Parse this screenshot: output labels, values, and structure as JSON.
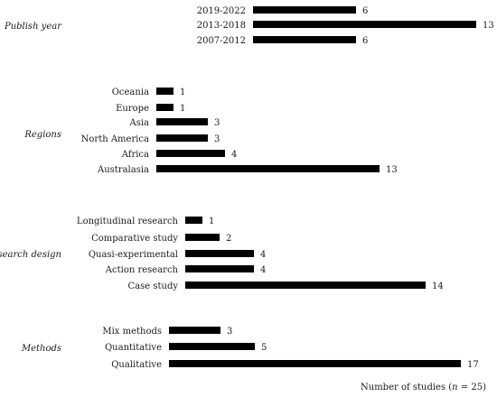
{
  "chart_data": [
    {
      "type": "bar",
      "orientation": "horizontal",
      "group_label": "Publish year",
      "categories": [
        "2019-2022",
        "2013-2018",
        "2007-2012"
      ],
      "values": [
        6,
        13,
        6
      ]
    },
    {
      "type": "bar",
      "orientation": "horizontal",
      "group_label": "Regions",
      "categories": [
        "Oceania",
        "Europe",
        "Asia",
        "North America",
        "Africa",
        "Australasia"
      ],
      "values": [
        1,
        1,
        3,
        3,
        4,
        13
      ]
    },
    {
      "type": "bar",
      "orientation": "horizontal",
      "group_label": "Research design",
      "categories": [
        "Longitudinal research",
        "Comparative study",
        "Quasi-experimental",
        "Action research",
        "Case study"
      ],
      "values": [
        1,
        2,
        4,
        4,
        14
      ]
    },
    {
      "type": "bar",
      "orientation": "horizontal",
      "group_label": "Methods",
      "categories": [
        "Mix methods",
        "Quantitative",
        "Qualitative"
      ],
      "values": [
        3,
        5,
        17
      ]
    }
  ],
  "footer": {
    "prefix": "Number of studies (",
    "n_symbol": "n",
    "suffix": " = 25)"
  },
  "colors": {
    "bar": "#000000",
    "text": "#1a1a1a"
  }
}
